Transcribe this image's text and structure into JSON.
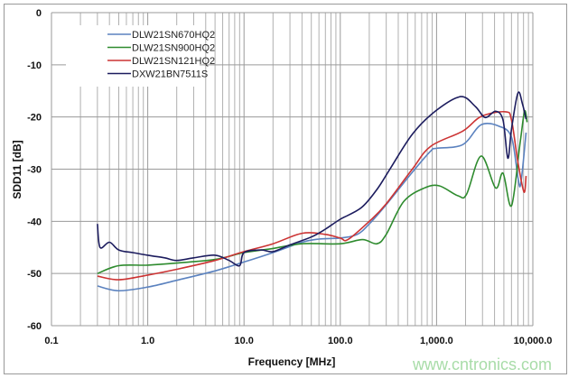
{
  "chart_data": {
    "type": "line",
    "title": "",
    "xlabel": "Frequency [MHz]",
    "ylabel": "SDD11 [dB]",
    "xscale": "log",
    "xlim": [
      0.1,
      10000
    ],
    "ylim": [
      -60,
      0
    ],
    "x_tick_labels": [
      "0.1",
      "1.0",
      "10.0",
      "100.0",
      "1,000.0",
      "10,000.0"
    ],
    "x_ticks": [
      0.1,
      1,
      10,
      100,
      1000,
      10000
    ],
    "y_ticks": [
      0,
      -10,
      -20,
      -30,
      -40,
      -50,
      -60
    ],
    "y_tick_labels": [
      "0",
      "-10",
      "-20",
      "-30",
      "-40",
      "-50",
      "-60"
    ],
    "grid": true,
    "legend_position": "top-left",
    "series": [
      {
        "name": "DLW21SN670HQ2",
        "color": "#5b82bf",
        "x": [
          0.3,
          0.5,
          1,
          2,
          5,
          10,
          20,
          40,
          60,
          100,
          150,
          200,
          300,
          565,
          870,
          1000,
          1870,
          2900,
          4500,
          6000,
          7000,
          7500,
          8500
        ],
        "y": [
          -52.4,
          -53.3,
          -52.6,
          -51.3,
          -49.5,
          -47.8,
          -46,
          -44,
          -43.4,
          -43.2,
          -42.5,
          -40.5,
          -36.8,
          -30.5,
          -26.5,
          -26,
          -25.3,
          -21.5,
          -21.8,
          -23.9,
          -31.6,
          -32.7,
          -23
        ]
      },
      {
        "name": "DLW21SN900HQ2",
        "color": "#2e8b2e",
        "x": [
          0.3,
          0.5,
          1,
          2,
          5,
          10,
          20,
          40,
          100,
          170,
          240,
          300,
          456,
          750,
          1070,
          1670,
          2050,
          2900,
          4100,
          4900,
          6000,
          7400,
          8200,
          8700
        ],
        "y": [
          -50,
          -48.5,
          -48.4,
          -48,
          -47.3,
          -46,
          -45.2,
          -44.3,
          -44.3,
          -43.5,
          -44.3,
          -42.5,
          -36.2,
          -33.6,
          -33.2,
          -35.1,
          -34.8,
          -27.5,
          -33.6,
          -30.8,
          -37,
          -24.7,
          -18.9,
          -21
        ]
      },
      {
        "name": "DLW21SN121HQ2",
        "color": "#cc3333",
        "x": [
          0.3,
          0.5,
          1,
          2,
          5,
          10,
          20,
          40,
          70,
          100,
          120,
          200,
          295,
          565,
          870,
          1870,
          2900,
          5200,
          6000,
          7000,
          8100,
          8500
        ],
        "y": [
          -50.5,
          -51.2,
          -50.3,
          -49.2,
          -47.5,
          -45.8,
          -44.3,
          -42.3,
          -42.5,
          -43.2,
          -43.5,
          -40,
          -36.8,
          -29.9,
          -25.6,
          -22.7,
          -19.9,
          -19,
          -20.6,
          -28.7,
          -34.4,
          -31.3
        ]
      },
      {
        "name": "DXW21BN7511S",
        "color": "#1c1c5e",
        "x": [
          0.3,
          0.32,
          0.4,
          0.5,
          0.7,
          1,
          1.5,
          2,
          3,
          5,
          7,
          9,
          10,
          15,
          20,
          30,
          50,
          70,
          100,
          165,
          240,
          330,
          565,
          1000,
          1780,
          2530,
          3200,
          4100,
          4900,
          5500,
          6000,
          7000,
          7800,
          8500
        ],
        "y": [
          -40.5,
          -45,
          -44,
          -45.5,
          -46,
          -46.5,
          -47,
          -47.5,
          -47,
          -46.5,
          -47.5,
          -48.5,
          -46,
          -45.5,
          -45.8,
          -44.5,
          -43,
          -41.5,
          -39.6,
          -37.4,
          -33.9,
          -29.9,
          -23.2,
          -18.7,
          -16.1,
          -18,
          -20.1,
          -18.9,
          -20.6,
          -27.9,
          -22.3,
          -15.4,
          -17.5,
          -20.4
        ]
      }
    ]
  },
  "watermark": "www.cntronics.com"
}
